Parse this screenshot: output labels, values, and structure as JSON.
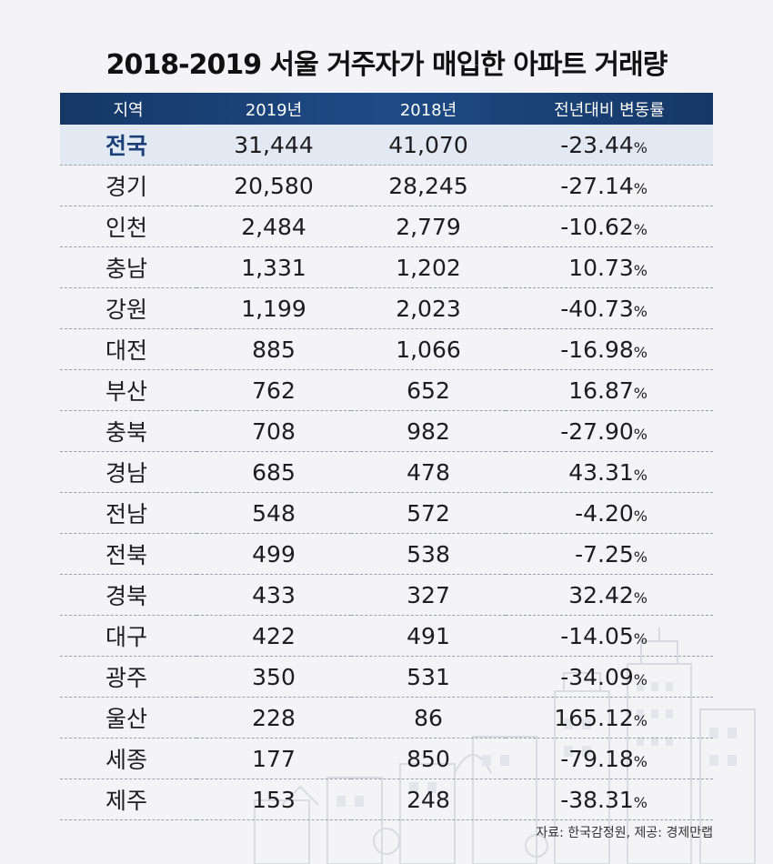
{
  "chart_data": {
    "type": "table",
    "title": "2018-2019 서울 거주자가 매입한 아파트 거래량",
    "columns": [
      "지역",
      "2019년",
      "2018년",
      "전년대비 변동률"
    ],
    "rows": [
      {
        "region": "전국",
        "y2019": "31,444",
        "y2018": "41,070",
        "change": "-23.44",
        "unit": "%"
      },
      {
        "region": "경기",
        "y2019": "20,580",
        "y2018": "28,245",
        "change": "-27.14",
        "unit": "%"
      },
      {
        "region": "인천",
        "y2019": "2,484",
        "y2018": "2,779",
        "change": "-10.62",
        "unit": "%"
      },
      {
        "region": "충남",
        "y2019": "1,331",
        "y2018": "1,202",
        "change": "10.73",
        "unit": "%"
      },
      {
        "region": "강원",
        "y2019": "1,199",
        "y2018": "2,023",
        "change": "-40.73",
        "unit": "%"
      },
      {
        "region": "대전",
        "y2019": "885",
        "y2018": "1,066",
        "change": "-16.98",
        "unit": "%"
      },
      {
        "region": "부산",
        "y2019": "762",
        "y2018": "652",
        "change": "16.87",
        "unit": "%"
      },
      {
        "region": "충북",
        "y2019": "708",
        "y2018": "982",
        "change": "-27.90",
        "unit": "%"
      },
      {
        "region": "경남",
        "y2019": "685",
        "y2018": "478",
        "change": "43.31",
        "unit": "%"
      },
      {
        "region": "전남",
        "y2019": "548",
        "y2018": "572",
        "change": "-4.20",
        "unit": "%"
      },
      {
        "region": "전북",
        "y2019": "499",
        "y2018": "538",
        "change": "-7.25",
        "unit": "%"
      },
      {
        "region": "경북",
        "y2019": "433",
        "y2018": "327",
        "change": "32.42",
        "unit": "%"
      },
      {
        "region": "대구",
        "y2019": "422",
        "y2018": "491",
        "change": "-14.05",
        "unit": "%"
      },
      {
        "region": "광주",
        "y2019": "350",
        "y2018": "531",
        "change": "-34.09",
        "unit": "%"
      },
      {
        "region": "울산",
        "y2019": "228",
        "y2018": "86",
        "change": "165.12",
        "unit": "%"
      },
      {
        "region": "세종",
        "y2019": "177",
        "y2018": "850",
        "change": "-79.18",
        "unit": "%"
      },
      {
        "region": "제주",
        "y2019": "153",
        "y2018": "248",
        "change": "-38.31",
        "unit": "%"
      }
    ]
  },
  "source": "자료: 한국감정원, 제공: 경제만랩",
  "colors": {
    "header_bg": "#1b3f78",
    "total_row_bg": "#e3e9f3",
    "total_text": "#1b3f78"
  }
}
